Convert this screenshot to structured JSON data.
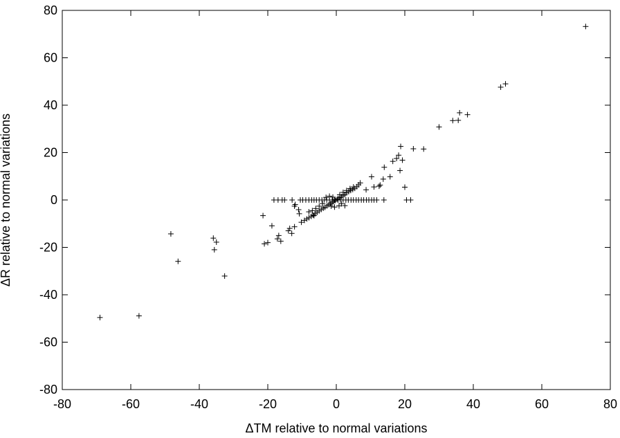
{
  "chart_data": {
    "type": "scatter",
    "title": "",
    "xlabel": "ΔTM relative to normal variations",
    "ylabel": "ΔR relative to normal variations",
    "xlim": [
      -80,
      80
    ],
    "ylim": [
      -80,
      80
    ],
    "xticks": [
      -80,
      -60,
      -40,
      -20,
      0,
      20,
      40,
      60,
      80
    ],
    "yticks": [
      -80,
      -60,
      -40,
      -20,
      0,
      20,
      40,
      60,
      80
    ],
    "xtick_labels": [
      "-80",
      "-60",
      "-40",
      "-20",
      "0",
      "20",
      "40",
      "60",
      "80"
    ],
    "ytick_labels": [
      "-80",
      "-60",
      "-40",
      "-20",
      "0",
      "20",
      "40",
      "60",
      "80"
    ],
    "marker": "+",
    "grid": false,
    "legend": "none",
    "series": [
      {
        "points": [
          [
            72.8,
            73.2
          ],
          [
            49.4,
            49.0
          ],
          [
            48.0,
            47.6
          ],
          [
            38.3,
            36.0
          ],
          [
            36.0,
            36.8
          ],
          [
            35.6,
            33.6
          ],
          [
            34.0,
            33.5
          ],
          [
            30.0,
            30.8
          ],
          [
            25.5,
            21.5
          ],
          [
            22.5,
            21.6
          ],
          [
            18.8,
            22.6
          ],
          [
            19.3,
            16.8
          ],
          [
            18.2,
            18.9
          ],
          [
            17.6,
            17.5
          ],
          [
            16.5,
            16.3
          ],
          [
            18.6,
            12.4
          ],
          [
            14.0,
            13.8
          ],
          [
            15.7,
            9.8
          ],
          [
            13.7,
            8.8
          ],
          [
            12.8,
            6.3
          ],
          [
            12.5,
            5.8
          ],
          [
            10.3,
            9.8
          ],
          [
            11.0,
            5.5
          ],
          [
            8.7,
            4.3
          ],
          [
            20.0,
            5.4
          ],
          [
            7.0,
            7.2
          ],
          [
            6.5,
            6.4
          ],
          [
            6.0,
            5.6
          ],
          [
            5.4,
            4.9
          ],
          [
            4.8,
            4.4
          ],
          [
            4.2,
            4.0
          ],
          [
            3.6,
            3.5
          ],
          [
            3.0,
            3.0
          ],
          [
            2.5,
            2.3
          ],
          [
            2.0,
            2.0
          ],
          [
            1.5,
            1.4
          ],
          [
            1.0,
            1.0
          ],
          [
            0.5,
            0.6
          ],
          [
            0.2,
            0.2
          ],
          [
            -0.3,
            -0.2
          ],
          [
            -0.8,
            -0.7
          ],
          [
            -1.2,
            -1.1
          ],
          [
            -1.7,
            -1.6
          ],
          [
            -2.2,
            -2.0
          ],
          [
            -2.7,
            -2.5
          ],
          [
            -3.3,
            -3.1
          ],
          [
            -3.8,
            -3.5
          ],
          [
            -4.4,
            -4.0
          ],
          [
            -5.0,
            -4.6
          ],
          [
            -5.6,
            -5.2
          ],
          [
            -6.2,
            -5.8
          ],
          [
            -6.8,
            -6.4
          ],
          [
            -7.3,
            -6.9
          ],
          [
            -8.0,
            -7.5
          ],
          [
            -8.6,
            -8.0
          ],
          [
            -9.3,
            -8.6
          ],
          [
            -10.2,
            -9.4
          ],
          [
            -10.8,
            -5.8
          ],
          [
            -11.0,
            -4.1
          ],
          [
            -12.0,
            -1.9
          ],
          [
            -12.2,
            -2.6
          ],
          [
            1.0,
            2.2
          ],
          [
            2.0,
            3.2
          ],
          [
            3.0,
            4.0
          ],
          [
            4.0,
            4.8
          ],
          [
            5.0,
            5.5
          ],
          [
            1.5,
            -1.6
          ],
          [
            2.5,
            -2.4
          ],
          [
            -1.0,
            1.2
          ],
          [
            -2.0,
            1.6
          ],
          [
            -3.0,
            1.1
          ],
          [
            0.8,
            -2.5
          ],
          [
            -0.5,
            -3.0
          ],
          [
            -1.5,
            -2.6
          ],
          [
            -4.0,
            -1.6
          ],
          [
            -5.0,
            -2.6
          ],
          [
            -6.0,
            -3.6
          ],
          [
            -7.0,
            -4.5
          ],
          [
            -8.0,
            -5.0
          ],
          [
            -6.5,
            -6.6
          ],
          [
            -12.9,
            0.0
          ],
          [
            -15.1,
            0.0
          ],
          [
            -15.8,
            0.0
          ],
          [
            -17.0,
            0.0
          ],
          [
            -18.2,
            0.0
          ],
          [
            -10.5,
            0.0
          ],
          [
            -9.8,
            0.0
          ],
          [
            -8.9,
            0.0
          ],
          [
            -8.0,
            0.0
          ],
          [
            -7.2,
            0.0
          ],
          [
            -6.5,
            0.0
          ],
          [
            -5.8,
            0.0
          ],
          [
            -5.0,
            0.0
          ],
          [
            -4.2,
            0.0
          ],
          [
            -3.5,
            0.0
          ],
          [
            -2.8,
            0.0
          ],
          [
            -2.0,
            0.0
          ],
          [
            -1.2,
            0.0
          ],
          [
            -0.5,
            0.0
          ],
          [
            0.5,
            0.0
          ],
          [
            1.2,
            0.0
          ],
          [
            2.0,
            0.0
          ],
          [
            2.8,
            0.0
          ],
          [
            3.5,
            0.0
          ],
          [
            4.3,
            0.0
          ],
          [
            5.0,
            0.0
          ],
          [
            5.8,
            0.0
          ],
          [
            6.5,
            0.0
          ],
          [
            7.3,
            0.0
          ],
          [
            8.0,
            0.0
          ],
          [
            8.8,
            0.0
          ],
          [
            9.5,
            0.0
          ],
          [
            10.3,
            0.0
          ],
          [
            11.0,
            0.0
          ],
          [
            11.8,
            0.0
          ],
          [
            13.9,
            0.0
          ],
          [
            20.5,
            0.0
          ],
          [
            21.7,
            0.0
          ],
          [
            -21.4,
            -6.6
          ],
          [
            -18.8,
            -10.9
          ],
          [
            -21.0,
            -18.5
          ],
          [
            -20.0,
            -18.0
          ],
          [
            -17.2,
            -16.4
          ],
          [
            -16.8,
            -15.0
          ],
          [
            -16.2,
            -17.4
          ],
          [
            -14.0,
            -13.0
          ],
          [
            -13.6,
            -12.0
          ],
          [
            -13.0,
            -14.1
          ],
          [
            -12.2,
            -11.3
          ],
          [
            -35.9,
            -16.1
          ],
          [
            -35.6,
            -21.0
          ],
          [
            -35.0,
            -17.8
          ],
          [
            -32.6,
            -32.1
          ],
          [
            -48.3,
            -14.3
          ],
          [
            -46.2,
            -25.9
          ],
          [
            -57.6,
            -48.9
          ],
          [
            -69.0,
            -49.6
          ]
        ]
      }
    ]
  }
}
